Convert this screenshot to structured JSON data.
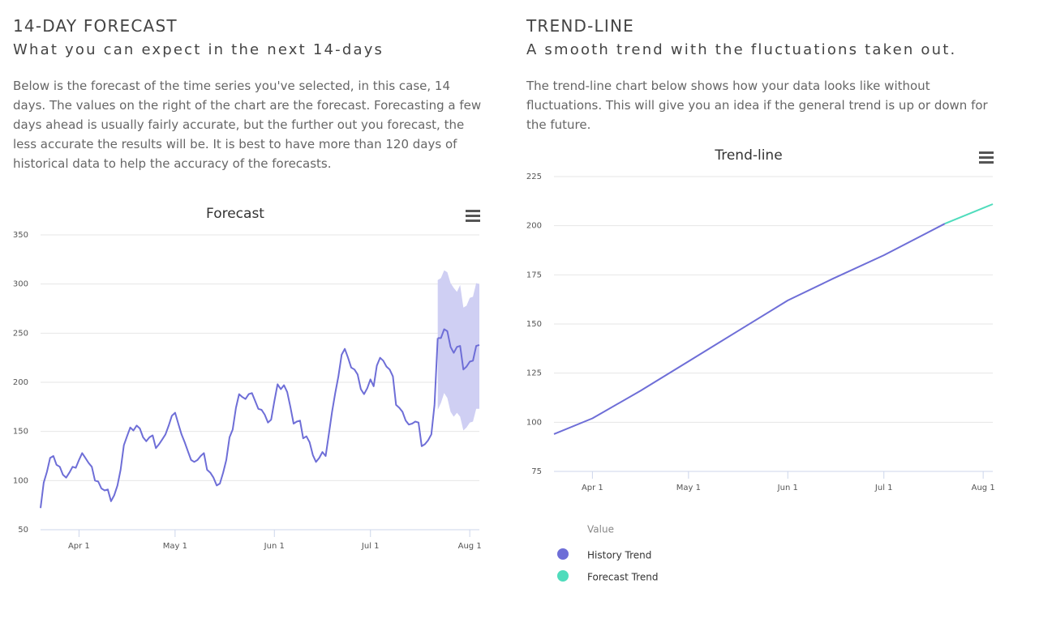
{
  "sections": [
    {
      "heading": "14-DAY FORECAST",
      "subheading": "What you can expect in the next 14-days",
      "text": "Below is the forecast of the time series you've selected, in this case, 14 days. The values on the right of the chart are the forecast. Forecasting a few days ahead is usually fairly accurate, but the further out you forecast, the less accurate the results will be. It is best to have more than 120 days of historical data to help the accuracy of the forecasts."
    },
    {
      "heading": "TREND-LINE",
      "subheading": "A smooth trend with the fluctuations taken out.",
      "text": "The trend-line chart below shows how your data looks like without fluctuations. This will give you an idea if the general trend is up or down for the future."
    }
  ],
  "chart_data": [
    {
      "type": "line",
      "title": "Forecast",
      "xlim": [
        79,
        216
      ],
      "xticks": [
        {
          "value": 91,
          "label": "Apr 1"
        },
        {
          "value": 121,
          "label": "May 1"
        },
        {
          "value": 152,
          "label": "Jun 1"
        },
        {
          "value": 182,
          "label": "Jul 1"
        },
        {
          "value": 213,
          "label": "Aug 1"
        }
      ],
      "ylim": [
        50,
        350
      ],
      "yticks": [
        50,
        100,
        150,
        200,
        250,
        300,
        350
      ],
      "grid": true,
      "band": {
        "color": "#cfcff3",
        "x": [
          203,
          204,
          205,
          206,
          207,
          208,
          209,
          210,
          211,
          212,
          213,
          214,
          215,
          216
        ],
        "upper": [
          304,
          306,
          314,
          312,
          301,
          296,
          292,
          299,
          276,
          278,
          286,
          287,
          301,
          300
        ],
        "lower": [
          172,
          179,
          189,
          184,
          170,
          165,
          169,
          165,
          151,
          154,
          159,
          160,
          173,
          173
        ]
      },
      "series": [
        {
          "color": "#6e6ed7",
          "x": [
            79,
            80,
            81,
            82,
            83,
            84,
            85,
            86,
            87,
            88,
            89,
            90,
            91,
            92,
            93,
            94,
            95,
            96,
            97,
            98,
            99,
            100,
            101,
            102,
            103,
            104,
            105,
            106,
            107,
            108,
            109,
            110,
            111,
            112,
            113,
            114,
            115,
            116,
            117,
            118,
            119,
            120,
            121,
            122,
            123,
            124,
            125,
            126,
            127,
            128,
            129,
            130,
            131,
            132,
            133,
            134,
            135,
            136,
            137,
            138,
            139,
            140,
            141,
            142,
            143,
            144,
            145,
            146,
            147,
            148,
            149,
            150,
            151,
            152,
            153,
            154,
            155,
            156,
            157,
            158,
            159,
            160,
            161,
            162,
            163,
            164,
            165,
            166,
            167,
            168,
            169,
            170,
            171,
            172,
            173,
            174,
            175,
            176,
            177,
            178,
            179,
            180,
            181,
            182,
            183,
            184,
            185,
            186,
            187,
            188,
            189,
            190,
            191,
            192,
            193,
            194,
            195,
            196,
            197,
            198,
            199,
            200,
            201,
            202
          ],
          "values": [
            72,
            98,
            109,
            123,
            125,
            116,
            114,
            106,
            103,
            108,
            114,
            113,
            121,
            128,
            123,
            118,
            114,
            100,
            99,
            92,
            90,
            91,
            79,
            85,
            95,
            111,
            136,
            145,
            154,
            151,
            156,
            153,
            144,
            140,
            144,
            146,
            133,
            137,
            142,
            147,
            156,
            166,
            169,
            158,
            147,
            139,
            130,
            121,
            119,
            121,
            125,
            128,
            111,
            108,
            103,
            95,
            97,
            108,
            121,
            144,
            152,
            174,
            188,
            185,
            183,
            188,
            189,
            181,
            173,
            172,
            167,
            159,
            162,
            181,
            198,
            193,
            197,
            190,
            175,
            158,
            160,
            161,
            143,
            145,
            139,
            126,
            119,
            123,
            129,
            125,
            147,
            170,
            189,
            206,
            228,
            234,
            225,
            215,
            213,
            208,
            193,
            188,
            194,
            203,
            196,
            217,
            225,
            222,
            216,
            213,
            206,
            177,
            174,
            170,
            161,
            157,
            158,
            160,
            159,
            135,
            137,
            141,
            147,
            177
          ]
        },
        {
          "color": "#6e6ed7",
          "x": [
            203,
            204,
            205,
            206,
            207,
            208,
            209,
            210,
            211,
            212,
            213,
            214,
            215,
            216
          ],
          "values": [
            245,
            245,
            254,
            252,
            236,
            230,
            236,
            237,
            213,
            216,
            221,
            222,
            237,
            238
          ]
        }
      ]
    },
    {
      "type": "line",
      "title": "Trend-line",
      "xlim": [
        79,
        216
      ],
      "xticks": [
        {
          "value": 91,
          "label": "Apr 1"
        },
        {
          "value": 121,
          "label": "May 1"
        },
        {
          "value": 152,
          "label": "Jun 1"
        },
        {
          "value": 182,
          "label": "Jul 1"
        },
        {
          "value": 213,
          "label": "Aug 1"
        }
      ],
      "ylim": [
        75,
        225
      ],
      "yticks": [
        75,
        100,
        125,
        150,
        175,
        200,
        225
      ],
      "grid": true,
      "legend_title": "Value",
      "legend": "bottom-left",
      "series": [
        {
          "name": "History Trend",
          "color": "#6e6ed7",
          "x": [
            79,
            91,
            106,
            121,
            136,
            152,
            166,
            182,
            201
          ],
          "values": [
            94,
            102,
            116,
            131,
            146,
            162,
            173,
            185,
            201
          ]
        },
        {
          "name": "Forecast Trend",
          "color": "#4fdcbc",
          "x": [
            201,
            216
          ],
          "values": [
            201,
            211
          ]
        }
      ]
    }
  ]
}
